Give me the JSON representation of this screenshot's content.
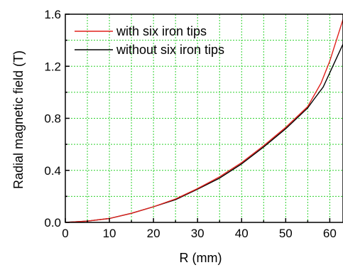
{
  "chart_data": {
    "type": "line",
    "xlabel": "R (mm)",
    "ylabel": "Radial magnetic field (T)",
    "xlim": [
      0,
      63
    ],
    "ylim": [
      0,
      1.6
    ],
    "x_ticks": [
      "0",
      "10",
      "20",
      "30",
      "40",
      "50",
      "60"
    ],
    "y_ticks": [
      "0.0",
      "0.4",
      "0.8",
      "1.2",
      "1.6"
    ],
    "grid": true,
    "legend_position": "top-left",
    "series": [
      {
        "name": "with six iron tips",
        "color": "#e0201b",
        "x": [
          0,
          5,
          10,
          15,
          20,
          25,
          30,
          35,
          40,
          45,
          50,
          55,
          58,
          60,
          63
        ],
        "y": [
          0,
          0.01,
          0.03,
          0.07,
          0.12,
          0.18,
          0.26,
          0.35,
          0.46,
          0.59,
          0.73,
          0.89,
          1.07,
          1.24,
          1.56
        ]
      },
      {
        "name": "without six iron tips",
        "color": "#000000",
        "x": [
          0,
          5,
          10,
          15,
          20,
          25,
          30,
          35,
          40,
          45,
          50,
          55,
          56.5,
          58.5,
          63
        ],
        "y": [
          0,
          0.01,
          0.03,
          0.07,
          0.12,
          0.175,
          0.255,
          0.34,
          0.45,
          0.58,
          0.72,
          0.88,
          0.95,
          1.04,
          1.37
        ]
      }
    ]
  }
}
